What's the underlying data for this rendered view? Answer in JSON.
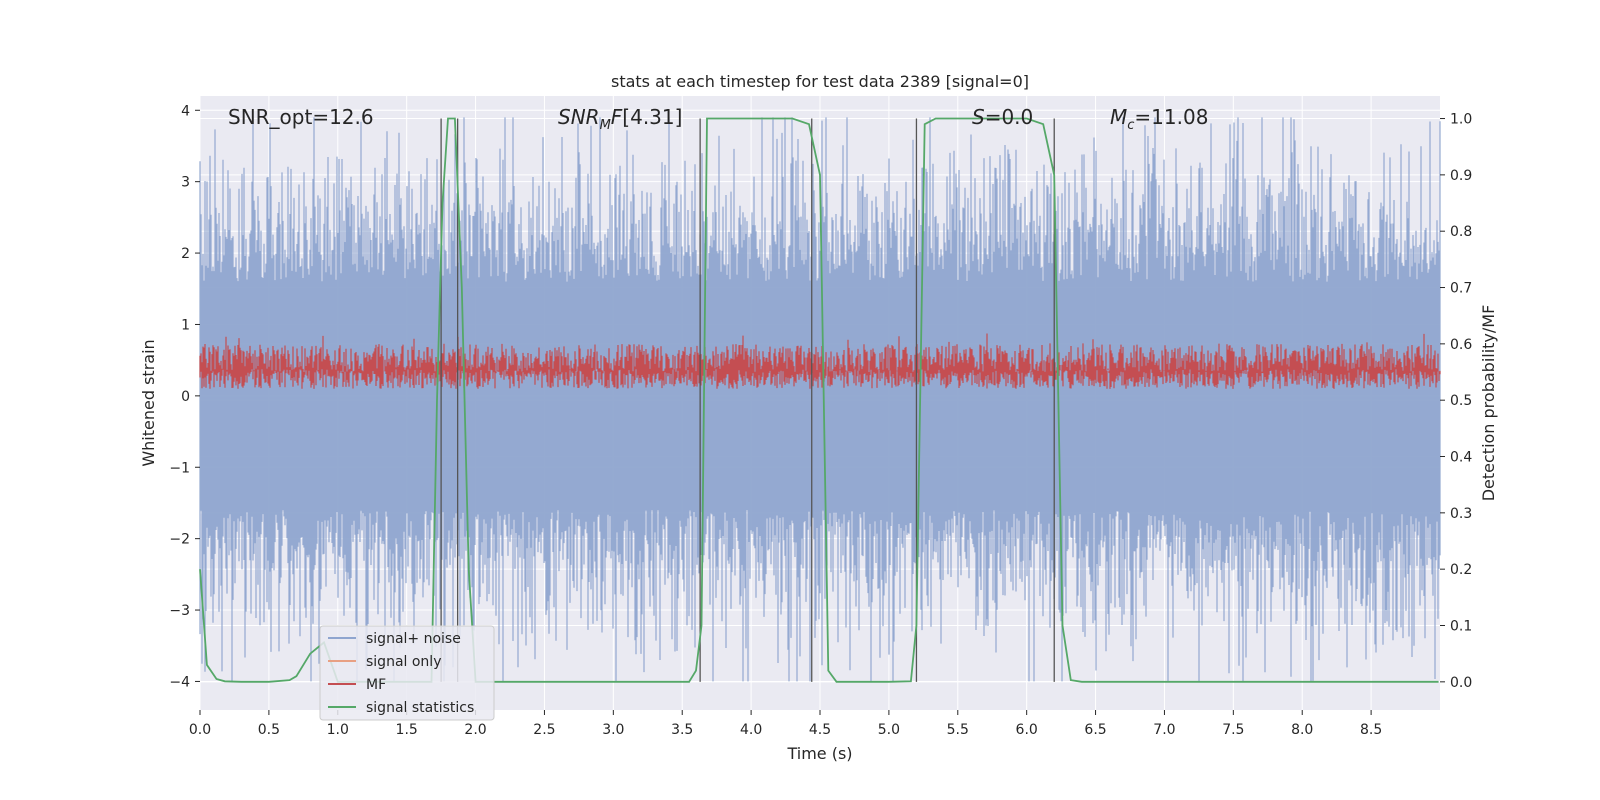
{
  "chart_data": {
    "type": "line",
    "title": "stats at each timestep for test data 2389 [signal=0]",
    "xlabel": "Time (s)",
    "ylabel_left": "Whitened strain",
    "ylabel_right": "Detection probability/MF",
    "xlim": [
      0.0,
      9.0
    ],
    "ylim_left": [
      -4.4,
      4.2
    ],
    "ylim_right": [
      -0.05,
      1.04
    ],
    "x_ticks": [
      "0.0",
      "0.5",
      "1.0",
      "1.5",
      "2.0",
      "2.5",
      "3.0",
      "3.5",
      "4.0",
      "4.5",
      "5.0",
      "5.5",
      "6.0",
      "6.5",
      "7.0",
      "7.5",
      "8.0",
      "8.5"
    ],
    "y_left_ticks": [
      "4",
      "3",
      "2",
      "1",
      "0",
      "−1",
      "−2",
      "−3",
      "−4"
    ],
    "y_right_ticks": [
      "1.0",
      "0.9",
      "0.8",
      "0.7",
      "0.6",
      "0.5",
      "0.4",
      "0.3",
      "0.2",
      "0.1",
      "0.0"
    ],
    "grid": true,
    "legend_position": "lower-left",
    "series": [
      {
        "name": "signal+ noise",
        "color": "#8fa5cf",
        "axis": "left",
        "kind": "noise",
        "amplitude_range": [
          -4.0,
          3.9
        ]
      },
      {
        "name": "signal only",
        "color": "#e8a083",
        "axis": "left",
        "values": []
      },
      {
        "name": "MF",
        "color": "#c44e52",
        "axis": "right",
        "kind": "noise",
        "value_range": [
          0.52,
          0.63
        ]
      },
      {
        "name": "signal statistics",
        "color": "#55a868",
        "axis": "right",
        "x": [
          0.0,
          0.05,
          0.12,
          0.18,
          0.3,
          0.5,
          0.65,
          0.7,
          0.8,
          0.9,
          1.0,
          1.2,
          1.5,
          1.68,
          1.72,
          1.76,
          1.8,
          1.85,
          1.9,
          1.95,
          2.0,
          2.1,
          3.0,
          3.55,
          3.6,
          3.64,
          3.68,
          4.0,
          4.3,
          4.42,
          4.5,
          4.56,
          4.62,
          5.0,
          5.16,
          5.2,
          5.26,
          5.34,
          6.0,
          6.12,
          6.2,
          6.26,
          6.32,
          6.4,
          8.99
        ],
        "y": [
          0.2,
          0.03,
          0.005,
          0.001,
          0.0,
          0.0,
          0.003,
          0.01,
          0.05,
          0.07,
          0.0,
          0.0,
          0.0,
          0.0,
          0.5,
          0.85,
          1.0,
          1.0,
          0.7,
          0.2,
          0.0,
          0.0,
          0.0,
          0.0,
          0.02,
          0.1,
          1.0,
          1.0,
          1.0,
          0.99,
          0.9,
          0.02,
          0.0,
          0.0,
          0.001,
          0.1,
          0.99,
          1.0,
          1.0,
          0.99,
          0.9,
          0.1,
          0.003,
          0.0,
          0.0
        ]
      }
    ],
    "vertical_markers_x": [
      1.75,
      1.87,
      3.63,
      4.44,
      5.2,
      6.2
    ],
    "annotations": {
      "snr_opt": "SNR_opt=12.6",
      "snr_mf": "[4.31]",
      "s": "=0.0",
      "mc": "=11.08"
    },
    "colors": {
      "plot_background": "#eaeaf2",
      "grid": "#ffffff",
      "marker_lines": "#555555"
    }
  }
}
